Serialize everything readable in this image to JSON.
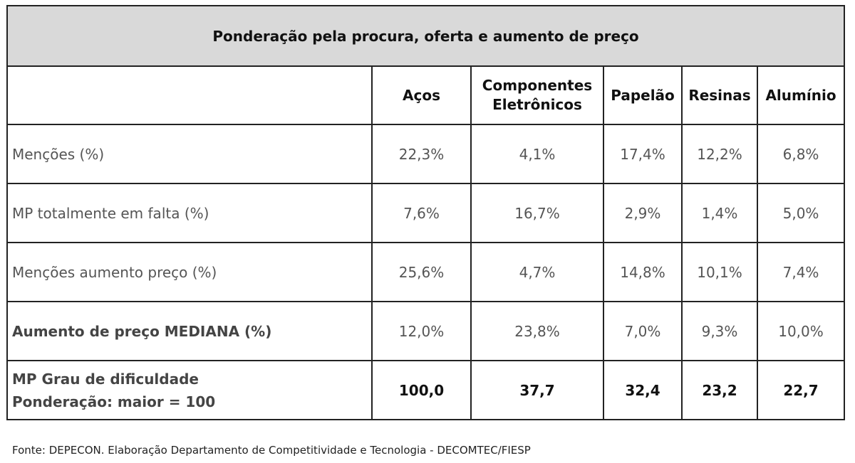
{
  "table": {
    "title": "Ponderação pela procura, oferta e aumento de preço",
    "columns": [
      "Aços",
      "Componentes Eletrônicos",
      "Papelão",
      "Resinas",
      "Alumínio"
    ],
    "rows": [
      {
        "label": "Menções (%)",
        "values": [
          "22,3%",
          "4,1%",
          "17,4%",
          "12,2%",
          "6,8%"
        ]
      },
      {
        "label": "MP totalmente em falta (%)",
        "values": [
          "7,6%",
          "16,7%",
          "2,9%",
          "1,4%",
          "5,0%"
        ]
      },
      {
        "label": "Menções aumento preço (%)",
        "values": [
          "25,6%",
          "4,7%",
          "14,8%",
          "10,1%",
          "7,4%"
        ]
      },
      {
        "label": "Aumento de preço MEDIANA (%)",
        "values": [
          "12,0%",
          "23,8%",
          "7,0%",
          "9,3%",
          "10,0%"
        ]
      },
      {
        "label_line1": "MP Grau de dificuldade",
        "label_line2": "Ponderação: maior = 100",
        "values": [
          "100,0",
          "37,7",
          "32,4",
          "23,2",
          "22,7"
        ]
      }
    ]
  },
  "footnote": "Fonte: DEPECON. Elaboração Departamento de Competitividade e Tecnologia - DECOMTEC/FIESP"
}
